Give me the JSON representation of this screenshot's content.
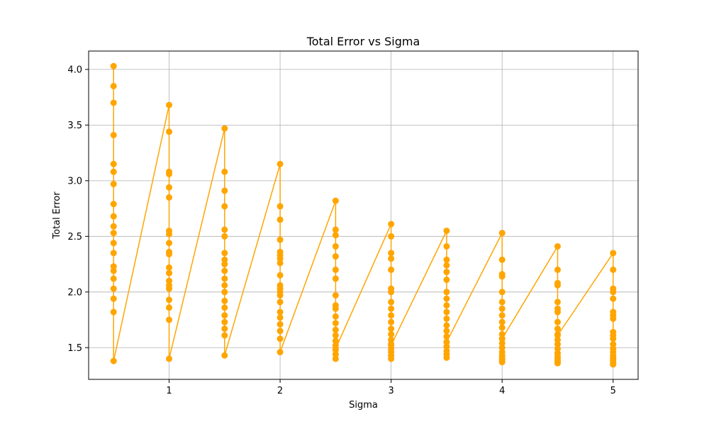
{
  "chart_data": {
    "type": "line",
    "title": "Total Error vs Sigma",
    "xlabel": "Sigma",
    "ylabel": "Total Error",
    "xlim": [
      0.275,
      5.225
    ],
    "ylim": [
      1.215,
      4.165
    ],
    "grid": true,
    "legend": "none",
    "x_ticks": [
      1,
      2,
      3,
      4,
      5
    ],
    "x_tick_labels": [
      "1",
      "2",
      "3",
      "4",
      "5"
    ],
    "y_ticks": [
      1.5,
      2.0,
      2.5,
      3.0,
      3.5,
      4.0
    ],
    "y_tick_labels": [
      "1.5",
      "2.0",
      "2.5",
      "3.0",
      "3.5",
      "4.0"
    ],
    "series_color": "#FFA500",
    "series": [
      {
        "x": [
          0.5,
          0.5,
          0.5,
          0.5,
          0.5,
          0.5,
          0.5,
          0.5,
          0.5,
          0.5,
          0.5,
          0.5,
          0.5,
          0.5,
          0.5,
          0.5,
          0.5,
          0.5,
          0.5,
          0.5,
          1,
          1,
          1,
          1,
          1,
          1,
          1,
          1,
          1,
          1,
          1,
          1,
          1,
          1,
          1,
          1,
          1,
          1,
          1,
          1,
          1.5,
          1.5,
          1.5,
          1.5,
          1.5,
          1.5,
          1.5,
          1.5,
          1.5,
          1.5,
          1.5,
          1.5,
          1.5,
          1.5,
          1.5,
          1.5,
          1.5,
          1.5,
          1.5,
          1.5,
          2,
          2,
          2,
          2,
          2,
          2,
          2,
          2,
          2,
          2,
          2,
          2,
          2,
          2,
          2,
          2,
          2,
          2,
          2,
          2,
          2.5,
          2.5,
          2.5,
          2.5,
          2.5,
          2.5,
          2.5,
          2.5,
          2.5,
          2.5,
          2.5,
          2.5,
          2.5,
          2.5,
          2.5,
          2.5,
          2.5,
          2.5,
          2.5,
          2.5,
          3,
          3,
          3,
          3,
          3,
          3,
          3,
          3,
          3,
          3,
          3,
          3,
          3,
          3,
          3,
          3,
          3,
          3,
          3,
          3,
          3.5,
          3.5,
          3.5,
          3.5,
          3.5,
          3.5,
          3.5,
          3.5,
          3.5,
          3.5,
          3.5,
          3.5,
          3.5,
          3.5,
          3.5,
          3.5,
          3.5,
          3.5,
          3.5,
          3.5,
          4,
          4,
          4,
          4,
          4,
          4,
          4,
          4,
          4,
          4,
          4,
          4,
          4,
          4,
          4,
          4,
          4,
          4,
          4,
          4,
          4.5,
          4.5,
          4.5,
          4.5,
          4.5,
          4.5,
          4.5,
          4.5,
          4.5,
          4.5,
          4.5,
          4.5,
          4.5,
          4.5,
          4.5,
          4.5,
          4.5,
          4.5,
          4.5,
          4.5,
          5,
          5,
          5,
          5,
          5,
          5,
          5,
          5,
          5,
          5,
          5,
          5,
          5,
          5,
          5,
          5,
          5,
          5,
          5,
          5
        ],
        "y": [
          4.03,
          3.85,
          3.7,
          3.41,
          3.15,
          3.08,
          2.97,
          2.79,
          2.68,
          2.59,
          2.53,
          2.44,
          2.35,
          2.23,
          2.19,
          2.12,
          2.03,
          1.94,
          1.82,
          1.38,
          3.68,
          3.44,
          3.08,
          3.06,
          2.94,
          2.85,
          2.55,
          2.52,
          2.44,
          2.36,
          2.34,
          2.22,
          2.17,
          2.1,
          2.06,
          2.03,
          1.93,
          1.86,
          1.75,
          1.4,
          3.47,
          3.08,
          2.91,
          2.77,
          2.56,
          2.5,
          2.35,
          2.29,
          2.25,
          2.19,
          2.12,
          2.06,
          2.0,
          1.92,
          1.86,
          1.79,
          1.73,
          1.67,
          1.61,
          1.43,
          3.15,
          2.77,
          2.65,
          2.47,
          2.36,
          2.33,
          2.3,
          2.26,
          2.15,
          2.06,
          2.03,
          2.0,
          1.97,
          1.91,
          1.82,
          1.77,
          1.71,
          1.65,
          1.58,
          1.46,
          2.82,
          2.56,
          2.51,
          2.41,
          2.32,
          2.2,
          2.12,
          1.97,
          1.88,
          1.85,
          1.78,
          1.72,
          1.66,
          1.61,
          1.56,
          1.52,
          1.48,
          1.44,
          1.4,
          1.49,
          2.61,
          2.5,
          2.35,
          2.3,
          2.2,
          2.03,
          2.0,
          1.91,
          1.85,
          1.79,
          1.73,
          1.67,
          1.62,
          1.57,
          1.53,
          1.49,
          1.46,
          1.43,
          1.4,
          1.52,
          2.55,
          2.41,
          2.29,
          2.24,
          2.18,
          2.11,
          2.0,
          1.94,
          1.88,
          1.82,
          1.76,
          1.7,
          1.65,
          1.6,
          1.55,
          1.51,
          1.47,
          1.44,
          1.41,
          1.55,
          2.53,
          2.29,
          2.16,
          2.14,
          2.0,
          1.91,
          1.85,
          1.79,
          1.73,
          1.68,
          1.62,
          1.58,
          1.54,
          1.5,
          1.46,
          1.43,
          1.41,
          1.39,
          1.37,
          1.58,
          2.41,
          2.2,
          2.08,
          2.06,
          1.91,
          1.85,
          1.82,
          1.73,
          1.67,
          1.62,
          1.57,
          1.53,
          1.49,
          1.45,
          1.42,
          1.4,
          1.38,
          1.37,
          1.36,
          1.61,
          2.35,
          2.2,
          2.03,
          2.0,
          1.94,
          1.82,
          1.79,
          1.76,
          1.64,
          1.61,
          1.58,
          1.53,
          1.49,
          1.46,
          1.43,
          1.41,
          1.39,
          1.37,
          1.35,
          1.35
        ]
      }
    ]
  }
}
